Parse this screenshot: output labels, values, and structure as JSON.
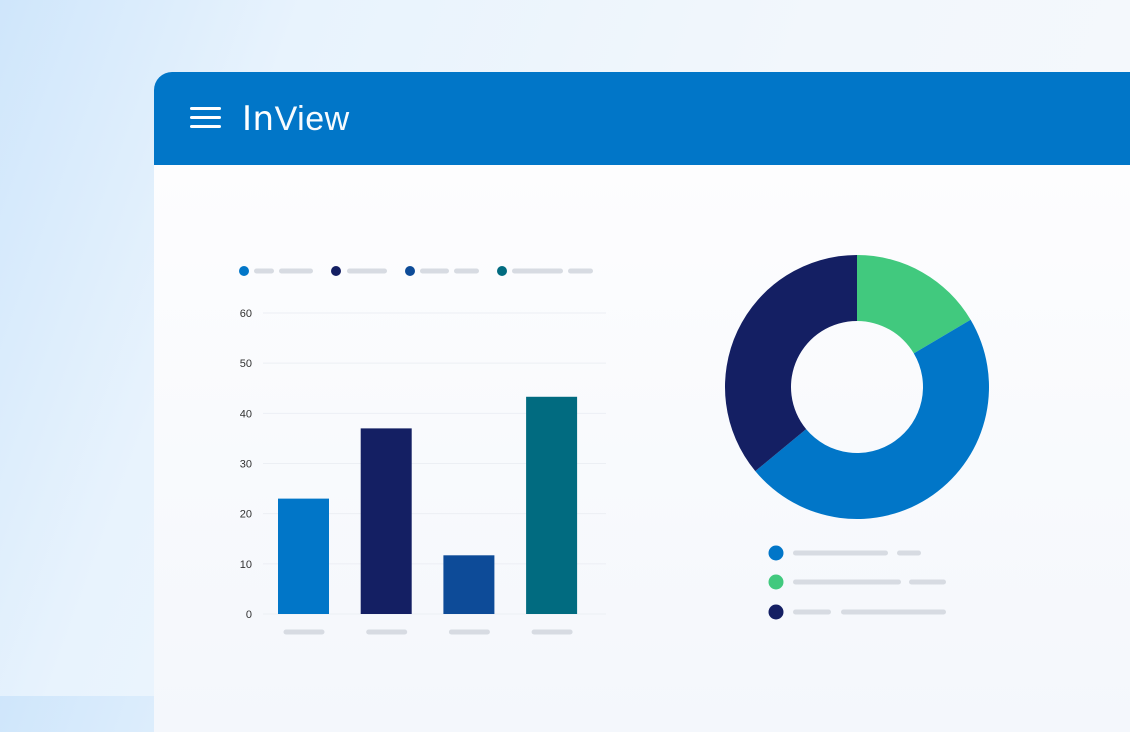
{
  "app": {
    "brand_bold": "In",
    "brand_light": "View"
  },
  "colors": {
    "header": "#0176c8",
    "blue": "#0176c8",
    "navy": "#141f63",
    "royal": "#0d4b98",
    "teal": "#016b80",
    "green": "#41c97e",
    "placeholder": "#d7dbe2",
    "grid": "#eceff4",
    "tick": "#333333"
  },
  "chart_data": [
    {
      "type": "bar",
      "categories": [
        "",
        "",
        "",
        ""
      ],
      "values": [
        23,
        37,
        11.7,
        43.3
      ],
      "bar_colors": [
        "#0176c8",
        "#141f63",
        "#0d4b98",
        "#016b80"
      ],
      "y_ticks": [
        0,
        10,
        20,
        30,
        40,
        50,
        60
      ],
      "ylim": [
        0,
        60
      ],
      "grid": true,
      "legend_placement": "top",
      "title": "",
      "xlabel": "",
      "ylabel": ""
    },
    {
      "type": "pie",
      "variant": "donut",
      "slices": [
        {
          "value": 16.5,
          "color": "#41c97e"
        },
        {
          "value": 47.5,
          "color": "#0176c8"
        },
        {
          "value": 36,
          "color": "#141f63"
        }
      ],
      "legend_placement": "bottom",
      "title": ""
    }
  ]
}
